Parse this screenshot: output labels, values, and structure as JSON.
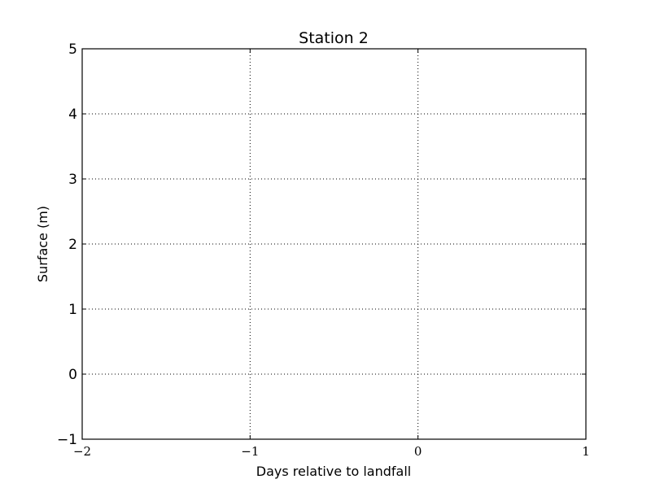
{
  "chart_data": {
    "type": "line",
    "title": "Station 2",
    "xlabel": "Days relative to landfall",
    "ylabel": "Surface (m)",
    "xlim": [
      -2,
      1
    ],
    "ylim": [
      -1,
      5
    ],
    "xticks": [
      -2,
      -1,
      0,
      1
    ],
    "xtick_labels": [
      "−2",
      "−1",
      "0",
      "1"
    ],
    "yticks": [
      -1,
      0,
      1,
      2,
      3,
      4,
      5
    ],
    "ytick_labels": [
      "−1",
      "0",
      "1",
      "2",
      "3",
      "4",
      "5"
    ],
    "grid": true,
    "series": []
  }
}
